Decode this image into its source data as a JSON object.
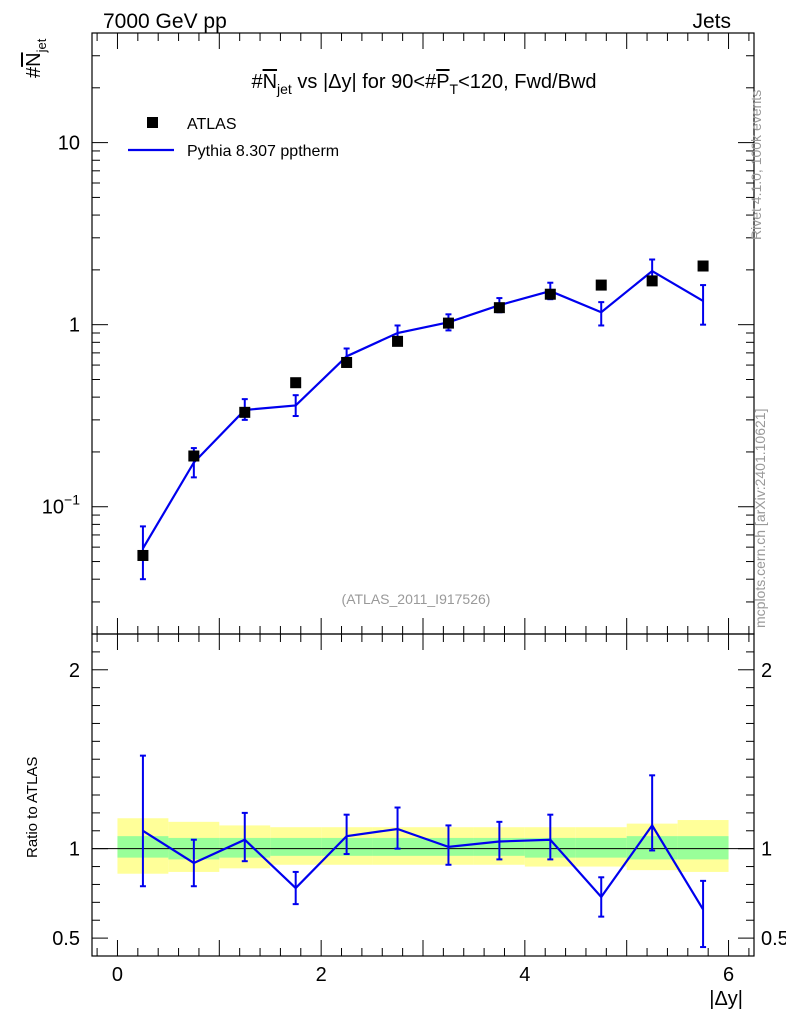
{
  "header": {
    "left_label": "7000 GeV pp",
    "right_label": "Jets",
    "side_label_top": "Rivet 4.1.0,  100k events",
    "side_label_bottom": "mcplots.cern.ch [arXiv:2401.10621]"
  },
  "colors": {
    "mc": "#0000ee",
    "data": "#000000",
    "band_inner": "#99ff99",
    "band_outer": "#ffff99",
    "watermark": "#999999"
  },
  "chart_data": {
    "type": "line",
    "title": "#N_jet vs |Δy| for 90<#P_T<120, Fwd/Bwd",
    "title_parts": {
      "prefix": "#",
      "n": "N",
      "n_sub": "jet",
      "middle": " vs |Δy| for 90<#",
      "p": "P",
      "p_sub": "T",
      "suffix": "<120, Fwd/Bwd"
    },
    "ylabel_main": {
      "prefix": "#",
      "n": "N",
      "sub": "jet"
    },
    "ylabel_ratio": "Ratio to ATLAS",
    "xlabel": "|Δy|",
    "analysis_tag": "(ATLAS_2011_I917526)",
    "xlim": [
      -0.25,
      6.25
    ],
    "ylim_main": [
      0.02,
      40
    ],
    "yscale_main": "log",
    "ylim_ratio": [
      0.4,
      2.2
    ],
    "legend": {
      "placement": "top-left",
      "entries": [
        {
          "name": "ATLAS",
          "style": "marker"
        },
        {
          "name": "Pythia 8.307 pptherm",
          "style": "line"
        }
      ]
    },
    "main_yticks": [
      {
        "value": 10,
        "label": "10",
        "sup": ""
      },
      {
        "value": 1,
        "label": "1",
        "sup": ""
      },
      {
        "value": 0.1,
        "label": "10",
        "sup": "−1"
      }
    ],
    "ratio_yticks": [
      {
        "value": 2,
        "label": "2"
      },
      {
        "value": 1,
        "label": "1"
      },
      {
        "value": 0.5,
        "label": "0.5"
      }
    ],
    "xticks": [
      {
        "value": 0,
        "label": "0"
      },
      {
        "value": 2,
        "label": "2"
      },
      {
        "value": 4,
        "label": "4"
      },
      {
        "value": 6,
        "label": "6"
      }
    ],
    "bin_edges": [
      0,
      0.5,
      1,
      1.5,
      2,
      2.5,
      3,
      3.5,
      4,
      4.5,
      5,
      5.5,
      6
    ],
    "x": [
      0.25,
      0.75,
      1.25,
      1.75,
      2.25,
      2.75,
      3.25,
      3.75,
      4.25,
      4.75,
      5.25,
      5.75
    ],
    "series": [
      {
        "name": "ATLAS",
        "values": [
          0.054,
          0.19,
          0.33,
          0.48,
          0.62,
          0.81,
          1.02,
          1.24,
          1.47,
          1.65,
          1.74,
          2.1
        ]
      },
      {
        "name": "Pythia 8.307 pptherm",
        "values": [
          0.059,
          0.175,
          0.34,
          0.36,
          0.67,
          0.9,
          1.03,
          1.28,
          1.53,
          1.17,
          1.97,
          1.35
        ],
        "err_low": [
          0.04,
          0.145,
          0.3,
          0.315,
          0.6,
          0.81,
          0.93,
          1.17,
          1.38,
          0.99,
          1.72,
          1.0
        ],
        "err_high": [
          0.078,
          0.21,
          0.39,
          0.41,
          0.74,
          0.99,
          1.14,
          1.4,
          1.7,
          1.33,
          2.28,
          1.65
        ]
      }
    ],
    "ratio": {
      "values": [
        1.1,
        0.92,
        1.05,
        0.78,
        1.07,
        1.11,
        1.01,
        1.04,
        1.05,
        0.73,
        1.13,
        0.66
      ],
      "err_low": [
        0.79,
        0.79,
        0.93,
        0.69,
        0.97,
        1.0,
        0.91,
        0.94,
        0.94,
        0.62,
        0.99,
        0.45
      ],
      "err_high": [
        1.52,
        1.05,
        1.2,
        0.87,
        1.19,
        1.23,
        1.13,
        1.15,
        1.19,
        0.84,
        1.41,
        0.82
      ],
      "band_inner": [
        [
          0.95,
          1.07
        ],
        [
          0.94,
          1.06
        ],
        [
          0.95,
          1.06
        ],
        [
          0.96,
          1.06
        ],
        [
          0.96,
          1.06
        ],
        [
          0.96,
          1.06
        ],
        [
          0.96,
          1.06
        ],
        [
          0.96,
          1.06
        ],
        [
          0.95,
          1.06
        ],
        [
          0.95,
          1.06
        ],
        [
          0.94,
          1.07
        ],
        [
          0.94,
          1.07
        ]
      ],
      "band_outer": [
        [
          0.86,
          1.17
        ],
        [
          0.87,
          1.15
        ],
        [
          0.89,
          1.13
        ],
        [
          0.91,
          1.12
        ],
        [
          0.91,
          1.12
        ],
        [
          0.91,
          1.12
        ],
        [
          0.91,
          1.12
        ],
        [
          0.91,
          1.12
        ],
        [
          0.9,
          1.12
        ],
        [
          0.9,
          1.12
        ],
        [
          0.88,
          1.14
        ],
        [
          0.87,
          1.16
        ]
      ]
    }
  }
}
